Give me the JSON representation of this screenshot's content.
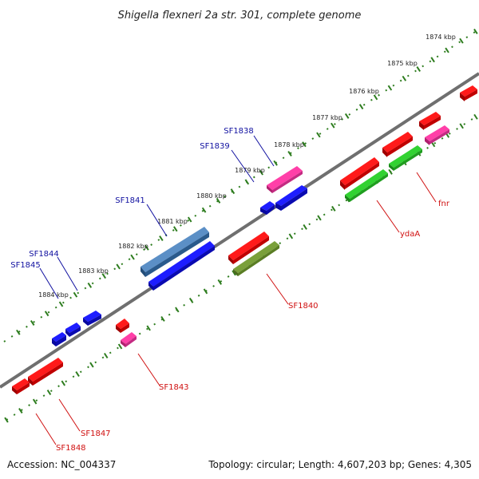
{
  "title": "Shigella flexneri 2a str. 301, complete genome",
  "footer": {
    "accession": "Accession: NC_004337",
    "summary": "Topology: circular; Length: 4,607,203 bp; Genes: 4,305"
  },
  "colors": {
    "backbone": "#777777",
    "axis": "#2e7d1f",
    "label_top": "#1010a0",
    "label_bottom": "#d01010"
  },
  "ticks": [
    {
      "label": "1874 kbp"
    },
    {
      "label": "1875 kbp"
    },
    {
      "label": "1876 kbp"
    },
    {
      "label": "1877 kbp"
    },
    {
      "label": "1878 kbp"
    },
    {
      "label": "1879 kbp"
    },
    {
      "label": "1880 kbp"
    },
    {
      "label": "1881 kbp"
    },
    {
      "label": "1882 kbp"
    },
    {
      "label": "1883 kbp"
    },
    {
      "label": "1884 kbp"
    }
  ],
  "gene_labels": {
    "top": [
      "SF1838",
      "SF1839",
      "SF1841",
      "SF1844",
      "SF1845"
    ],
    "bottom": [
      "fnr",
      "ydaA",
      "SF1840",
      "SF1843",
      "SF1847",
      "SF1848"
    ]
  }
}
